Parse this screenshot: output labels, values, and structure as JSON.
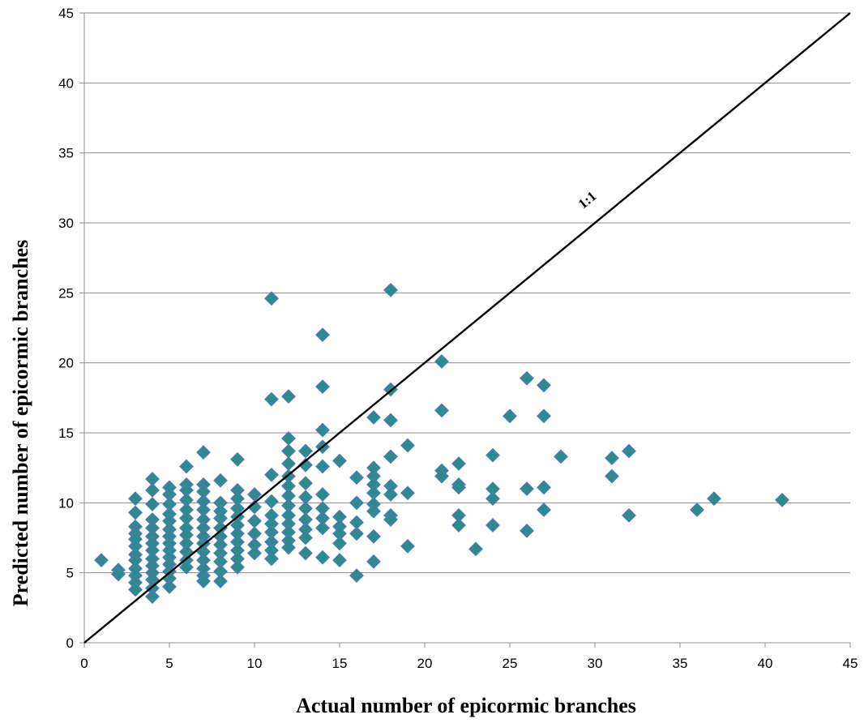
{
  "chart_data": {
    "type": "scatter",
    "title": "",
    "xlabel": "Actual number of epicormic branches",
    "ylabel": "Predicted number of epicormic branches",
    "xlim": [
      0,
      45
    ],
    "ylim": [
      0,
      45
    ],
    "xticks": [
      0,
      5,
      10,
      15,
      20,
      25,
      30,
      35,
      40,
      45
    ],
    "yticks": [
      0,
      5,
      10,
      15,
      20,
      25,
      30,
      35,
      40,
      45
    ],
    "grid": "horizontal",
    "marker_color": "#2e8b8b",
    "marker_edge_color": "#4a7ab8",
    "reference_line": {
      "label": "1:1",
      "from": [
        0,
        0
      ],
      "to": [
        45,
        45
      ]
    },
    "points": [
      [
        1,
        5.9
      ],
      [
        2,
        5.2
      ],
      [
        2,
        4.9
      ],
      [
        3,
        10.3
      ],
      [
        3,
        9.3
      ],
      [
        3,
        8.3
      ],
      [
        3,
        7.8
      ],
      [
        3,
        7.4
      ],
      [
        3,
        6.9
      ],
      [
        3,
        6.3
      ],
      [
        3,
        5.9
      ],
      [
        3,
        5.3
      ],
      [
        3,
        4.8
      ],
      [
        3,
        4.3
      ],
      [
        3,
        3.8
      ],
      [
        4,
        11.7
      ],
      [
        4,
        10.9
      ],
      [
        4,
        9.9
      ],
      [
        4,
        8.8
      ],
      [
        4,
        8.2
      ],
      [
        4,
        7.6
      ],
      [
        4,
        7.1
      ],
      [
        4,
        6.6
      ],
      [
        4,
        6.0
      ],
      [
        4,
        5.5
      ],
      [
        4,
        5.0
      ],
      [
        4,
        4.5
      ],
      [
        4,
        3.9
      ],
      [
        4,
        3.3
      ],
      [
        5,
        11.1
      ],
      [
        5,
        10.6
      ],
      [
        5,
        9.9
      ],
      [
        5,
        9.2
      ],
      [
        5,
        8.7
      ],
      [
        5,
        8.1
      ],
      [
        5,
        7.6
      ],
      [
        5,
        7.1
      ],
      [
        5,
        6.6
      ],
      [
        5,
        6.1
      ],
      [
        5,
        5.6
      ],
      [
        5,
        5.1
      ],
      [
        5,
        4.6
      ],
      [
        5,
        4.0
      ],
      [
        6,
        12.6
      ],
      [
        6,
        11.3
      ],
      [
        6,
        10.9
      ],
      [
        6,
        10.2
      ],
      [
        6,
        9.5
      ],
      [
        6,
        8.9
      ],
      [
        6,
        8.2
      ],
      [
        6,
        7.7
      ],
      [
        6,
        7.1
      ],
      [
        6,
        6.5
      ],
      [
        6,
        5.9
      ],
      [
        6,
        5.4
      ],
      [
        7,
        13.6
      ],
      [
        7,
        11.3
      ],
      [
        7,
        10.8
      ],
      [
        7,
        10.1
      ],
      [
        7,
        9.5
      ],
      [
        7,
        8.8
      ],
      [
        7,
        8.2
      ],
      [
        7,
        7.6
      ],
      [
        7,
        7.1
      ],
      [
        7,
        6.5
      ],
      [
        7,
        5.9
      ],
      [
        7,
        5.3
      ],
      [
        7,
        4.8
      ],
      [
        7,
        4.4
      ],
      [
        8,
        11.6
      ],
      [
        8,
        10.0
      ],
      [
        8,
        9.4
      ],
      [
        8,
        8.9
      ],
      [
        8,
        8.2
      ],
      [
        8,
        7.6
      ],
      [
        8,
        7.0
      ],
      [
        8,
        6.4
      ],
      [
        8,
        5.8
      ],
      [
        8,
        5.1
      ],
      [
        8,
        4.4
      ],
      [
        9,
        13.1
      ],
      [
        9,
        10.9
      ],
      [
        9,
        10.3
      ],
      [
        9,
        9.6
      ],
      [
        9,
        9.0
      ],
      [
        9,
        8.4
      ],
      [
        9,
        7.8
      ],
      [
        9,
        7.2
      ],
      [
        9,
        6.6
      ],
      [
        9,
        6.0
      ],
      [
        9,
        5.4
      ],
      [
        10,
        10.6
      ],
      [
        10,
        9.7
      ],
      [
        10,
        8.7
      ],
      [
        10,
        7.8
      ],
      [
        10,
        7.0
      ],
      [
        10,
        6.4
      ],
      [
        11,
        24.6
      ],
      [
        11,
        17.4
      ],
      [
        11,
        12.0
      ],
      [
        11,
        10.1
      ],
      [
        11,
        9.1
      ],
      [
        11,
        8.5
      ],
      [
        11,
        7.9
      ],
      [
        11,
        7.2
      ],
      [
        11,
        6.6
      ],
      [
        11,
        6.0
      ],
      [
        12,
        17.6
      ],
      [
        12,
        14.6
      ],
      [
        12,
        13.7
      ],
      [
        12,
        12.8
      ],
      [
        12,
        11.9
      ],
      [
        12,
        11.2
      ],
      [
        12,
        10.5
      ],
      [
        12,
        9.8
      ],
      [
        12,
        9.1
      ],
      [
        12,
        8.5
      ],
      [
        12,
        7.9
      ],
      [
        12,
        7.3
      ],
      [
        12,
        6.8
      ],
      [
        13,
        13.7
      ],
      [
        13,
        12.7
      ],
      [
        13,
        11.4
      ],
      [
        13,
        10.4
      ],
      [
        13,
        9.6
      ],
      [
        13,
        8.8
      ],
      [
        13,
        8.1
      ],
      [
        13,
        7.5
      ],
      [
        13,
        6.4
      ],
      [
        14,
        22.0
      ],
      [
        14,
        18.3
      ],
      [
        14,
        15.2
      ],
      [
        14,
        14.0
      ],
      [
        14,
        12.6
      ],
      [
        14,
        10.6
      ],
      [
        14,
        9.6
      ],
      [
        14,
        8.9
      ],
      [
        14,
        8.2
      ],
      [
        14,
        6.1
      ],
      [
        15,
        13.0
      ],
      [
        15,
        9.0
      ],
      [
        15,
        8.3
      ],
      [
        15,
        7.8
      ],
      [
        15,
        7.1
      ],
      [
        15,
        5.9
      ],
      [
        16,
        11.8
      ],
      [
        16,
        10.0
      ],
      [
        16,
        8.6
      ],
      [
        16,
        7.8
      ],
      [
        16,
        4.8
      ],
      [
        17,
        16.1
      ],
      [
        17,
        12.5
      ],
      [
        17,
        11.9
      ],
      [
        17,
        11.3
      ],
      [
        17,
        10.7
      ],
      [
        17,
        9.9
      ],
      [
        17,
        9.4
      ],
      [
        17,
        7.6
      ],
      [
        17,
        5.8
      ],
      [
        18,
        25.2
      ],
      [
        18,
        18.1
      ],
      [
        18,
        15.9
      ],
      [
        18,
        13.3
      ],
      [
        18,
        11.2
      ],
      [
        18,
        10.6
      ],
      [
        18,
        9.1
      ],
      [
        18,
        8.8
      ],
      [
        19,
        14.1
      ],
      [
        19,
        10.7
      ],
      [
        19,
        6.9
      ],
      [
        21,
        20.1
      ],
      [
        21,
        16.6
      ],
      [
        21,
        12.3
      ],
      [
        21,
        11.9
      ],
      [
        22,
        12.8
      ],
      [
        22,
        11.3
      ],
      [
        22,
        11.1
      ],
      [
        22,
        9.1
      ],
      [
        22,
        8.4
      ],
      [
        23,
        6.7
      ],
      [
        24,
        13.4
      ],
      [
        24,
        11.0
      ],
      [
        24,
        10.3
      ],
      [
        24,
        8.4
      ],
      [
        25,
        16.2
      ],
      [
        26,
        18.9
      ],
      [
        26,
        11.0
      ],
      [
        26,
        8.0
      ],
      [
        27,
        18.4
      ],
      [
        27,
        16.2
      ],
      [
        27,
        11.1
      ],
      [
        27,
        9.5
      ],
      [
        28,
        13.3
      ],
      [
        31,
        13.2
      ],
      [
        31,
        11.9
      ],
      [
        32,
        13.7
      ],
      [
        32,
        9.1
      ],
      [
        36,
        9.5
      ],
      [
        37,
        10.3
      ],
      [
        41,
        10.2
      ]
    ]
  }
}
